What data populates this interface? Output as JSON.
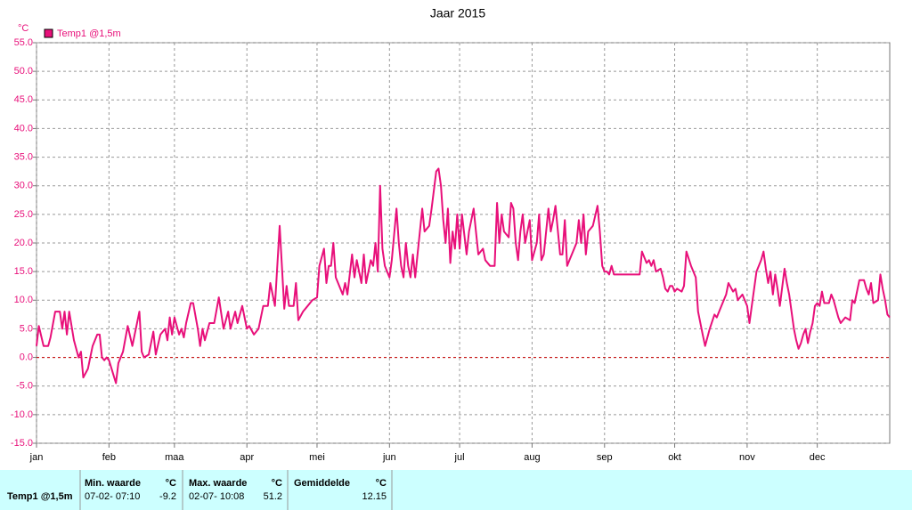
{
  "chart_data": {
    "type": "line",
    "title": "Jaar 2015",
    "y_label": "°C",
    "xlim": [
      0,
      365
    ],
    "xticks": [
      {
        "value": 0,
        "label": "jan"
      },
      {
        "value": 31,
        "label": "feb"
      },
      {
        "value": 59,
        "label": "maa"
      },
      {
        "value": 90,
        "label": "apr"
      },
      {
        "value": 120,
        "label": "mei"
      },
      {
        "value": 151,
        "label": "jun"
      },
      {
        "value": 181,
        "label": "jul"
      },
      {
        "value": 212,
        "label": "aug"
      },
      {
        "value": 243,
        "label": "sep"
      },
      {
        "value": 273,
        "label": "okt"
      },
      {
        "value": 304,
        "label": "nov"
      },
      {
        "value": 334,
        "label": "dec"
      }
    ],
    "ylim": [
      -15,
      55
    ],
    "yticks": [
      {
        "value": -15,
        "label": "-15.0"
      },
      {
        "value": -10,
        "label": "-10.0"
      },
      {
        "value": -5,
        "label": "-5.0"
      },
      {
        "value": 0,
        "label": "0.0"
      },
      {
        "value": 5,
        "label": "5.0"
      },
      {
        "value": 10,
        "label": "10.0"
      },
      {
        "value": 15,
        "label": "15.0"
      },
      {
        "value": 20,
        "label": "20.0"
      },
      {
        "value": 25,
        "label": "25.0"
      },
      {
        "value": 30,
        "label": "30.0"
      },
      {
        "value": 35,
        "label": "35.0"
      },
      {
        "value": 40,
        "label": "40.0"
      },
      {
        "value": 45,
        "label": "45.0"
      },
      {
        "value": 50,
        "label": "50.0"
      },
      {
        "value": 55,
        "label": "55.0"
      }
    ],
    "grid": true,
    "reference_line": {
      "value": 0,
      "color": "#cc0000"
    },
    "series": [
      {
        "name": "Temp1 @1,5m",
        "color": "#e8107a",
        "x": [
          0,
          1,
          3,
          5,
          6,
          8,
          10,
          11,
          12,
          13,
          14,
          16,
          18,
          19,
          20,
          22,
          24,
          26,
          27,
          28,
          29,
          30,
          31,
          34,
          35,
          37,
          39,
          41,
          42,
          44,
          45,
          46,
          48,
          50,
          51,
          53,
          55,
          56,
          57,
          58,
          59,
          61,
          62,
          63,
          64,
          66,
          67,
          69,
          70,
          71,
          72,
          74,
          76,
          78,
          80,
          82,
          83,
          85,
          86,
          88,
          90,
          91,
          93,
          95,
          97,
          99,
          100,
          102,
          104,
          106,
          107,
          108,
          110,
          111,
          112,
          114,
          116,
          118,
          120,
          121,
          123,
          124,
          125,
          126,
          127,
          128,
          129,
          131,
          132,
          133,
          135,
          136,
          137,
          139,
          140,
          141,
          143,
          144,
          145,
          146,
          147,
          148,
          149,
          151,
          152,
          154,
          155,
          156,
          157,
          158,
          159,
          160,
          161,
          162,
          163,
          165,
          166,
          168,
          169,
          171,
          172,
          173,
          174,
          175,
          176,
          177,
          178,
          179,
          180,
          181,
          182,
          184,
          185,
          187,
          188,
          189,
          191,
          192,
          194,
          196,
          197,
          198,
          199,
          200,
          202,
          203,
          204,
          205,
          206,
          207,
          208,
          209,
          211,
          212,
          214,
          215,
          216,
          217,
          219,
          220,
          221,
          222,
          224,
          225,
          226,
          227,
          228,
          230,
          231,
          232,
          233,
          234,
          235,
          236,
          238,
          240,
          241,
          242,
          243,
          244,
          245,
          246,
          247,
          252,
          256,
          258,
          259,
          261,
          262,
          263,
          264,
          265,
          267,
          268,
          269,
          270,
          271,
          272,
          273,
          274,
          276,
          277,
          278,
          280,
          282,
          283,
          285,
          286,
          288,
          290,
          291,
          293,
          295,
          296,
          298,
          299,
          300,
          302,
          304,
          305,
          306,
          308,
          310,
          311,
          312,
          313,
          314,
          315,
          316,
          317,
          318,
          320,
          321,
          322,
          324,
          325,
          326,
          327,
          328,
          329,
          330,
          331,
          332,
          333,
          334,
          335,
          336,
          337,
          339,
          340,
          341,
          343,
          344,
          346,
          348,
          349,
          350,
          352,
          354,
          355,
          356,
          357,
          358,
          360,
          361,
          362,
          363,
          364,
          365
        ],
        "values": [
          2,
          5.5,
          2,
          2,
          3.5,
          8,
          8,
          5,
          8,
          4,
          8,
          3,
          0,
          1,
          -3.5,
          -2,
          2,
          4,
          4,
          0,
          -0.5,
          0,
          -0.5,
          -4.5,
          -1,
          1,
          5.5,
          2,
          4,
          8,
          1,
          0,
          0.5,
          4.5,
          0.5,
          4,
          5,
          3,
          7,
          4,
          7,
          4,
          5,
          3.5,
          6,
          9.5,
          9.5,
          5,
          2,
          5,
          3,
          6,
          6,
          10.5,
          5,
          8,
          5,
          8,
          6,
          9,
          5,
          5.5,
          4,
          5,
          9,
          9,
          13,
          9,
          23,
          8.5,
          12.5,
          9,
          9,
          13,
          6.5,
          8,
          9,
          10,
          10.5,
          16,
          19,
          13,
          16,
          16,
          20,
          14,
          13,
          11,
          13,
          11,
          18,
          14,
          17,
          13,
          18,
          13,
          17,
          16,
          20,
          15,
          30,
          19,
          16,
          14,
          17,
          26,
          20,
          16,
          14,
          20,
          16,
          14,
          18,
          14,
          18,
          26,
          22,
          23,
          26,
          32.5,
          33,
          30,
          24,
          20,
          26,
          16.5,
          22,
          19,
          25,
          19,
          25,
          18,
          22,
          26,
          22,
          18,
          19,
          17,
          16,
          16,
          27,
          20,
          25,
          22,
          21,
          27,
          26,
          20,
          17,
          22,
          25,
          20,
          24,
          17,
          20,
          25,
          17,
          18,
          26,
          22,
          24,
          26.5,
          18,
          18,
          24,
          16,
          17,
          19,
          20,
          24,
          20,
          25,
          18,
          22,
          23,
          26.5,
          22,
          16,
          15,
          15,
          14.5,
          16,
          14.5,
          14.5,
          14.5,
          14.5,
          18.5,
          16.5,
          17,
          16,
          17,
          15,
          15.5,
          14,
          12,
          11.5,
          12.5,
          12.5,
          11.5,
          12,
          11.5,
          12.5,
          18.5,
          16,
          14,
          8,
          4,
          2,
          5,
          7.5,
          7,
          9,
          11,
          13,
          11.5,
          12,
          10,
          11,
          9,
          6,
          9,
          15,
          17,
          18.5,
          15.5,
          13,
          15,
          11,
          14.5,
          12,
          9,
          15.5,
          13,
          11,
          5,
          3,
          1.5,
          2.5,
          4,
          5,
          2.5,
          4.5,
          6,
          9,
          9.5,
          9,
          11.5,
          9.5,
          9.5,
          11,
          10,
          7,
          6,
          7,
          6.5,
          10,
          9.5,
          13.5,
          13.5,
          12,
          11,
          13,
          9.5,
          10,
          14.5,
          12,
          10,
          7.5,
          7
        ]
      }
    ]
  },
  "stats": {
    "row_label": "Temp1 @1,5m",
    "min": {
      "header": "Min. waarde",
      "unit": "°C",
      "time": "07-02- 07:10",
      "value": "-9.2"
    },
    "max": {
      "header": "Max. waarde",
      "unit": "°C",
      "time": "02-07- 10:08",
      "value": "51.2"
    },
    "avg": {
      "header": "Gemiddelde",
      "unit": "°C",
      "value": "12.15"
    }
  }
}
